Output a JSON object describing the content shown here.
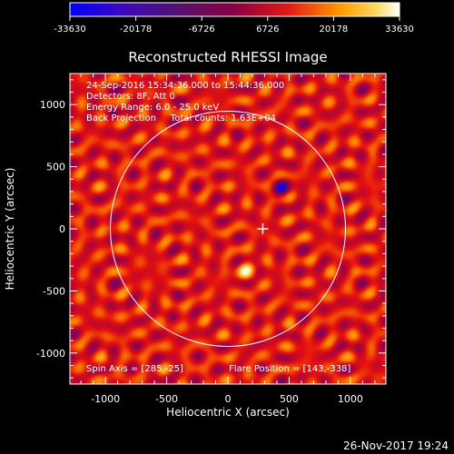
{
  "colorbar": {
    "tick_labels": [
      "-33630",
      "-20178",
      "-6726",
      "6726",
      "20178",
      "33630"
    ],
    "range": [
      -33630,
      33630
    ]
  },
  "colors": {
    "background": "#000000",
    "foreground": "#ffffff",
    "colormap": [
      "#0000ff",
      "#4a0c80",
      "#8e0050",
      "#e31010",
      "#ff8c00",
      "#ffd35a",
      "#ffffff"
    ]
  },
  "chart_data": {
    "type": "heatmap",
    "title": "Reconstructed RHESSI Image",
    "xlabel": "Heliocentric X (arcsec)",
    "ylabel": "Heliocentric Y (arcsec)",
    "xlim": [
      -1290,
      1290
    ],
    "ylim": [
      -1250,
      1250
    ],
    "xticks": [
      -1000,
      -500,
      0,
      500,
      1000
    ],
    "yticks": [
      -1000,
      -500,
      0,
      500,
      1000
    ],
    "x_tick_labels": [
      "-1000",
      "-500",
      "0",
      "500",
      "1000"
    ],
    "y_tick_labels": [
      "-1000",
      "-500",
      "0",
      "500",
      "1000"
    ],
    "solar_limb_radius": 960,
    "crosshair_center": [
      285,
      0
    ],
    "annotations": [
      "24-Sep-2016 15:34:36.000 to 15:44:36.000",
      "Detectors: 8F, Att 0",
      "Energy Range: 6.0 - 25.0 keV",
      "Back Projection     Total counts: 1.63E+04"
    ],
    "spin_axis": "Spin Axis = [285,-25]",
    "flare_position": "Flare Position = [143,-338]",
    "sources": [
      {
        "x": 143,
        "y": -338,
        "value": 33630
      },
      {
        "x": 440,
        "y": 330,
        "value": -33630
      }
    ]
  },
  "footer": {
    "timestamp": "26-Nov-2017 19:24"
  }
}
